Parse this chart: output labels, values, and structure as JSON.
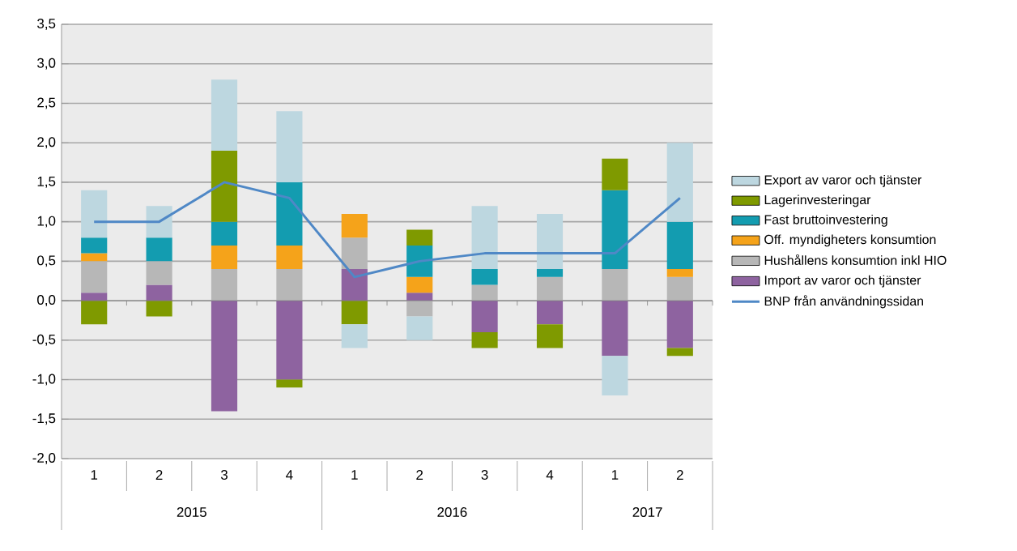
{
  "chart_data": {
    "type": "bar",
    "stacked": true,
    "grid": "y",
    "legend": "right",
    "categories": [
      "1",
      "2",
      "3",
      "4",
      "1",
      "2",
      "3",
      "4",
      "1",
      "2"
    ],
    "series": [
      {
        "name": "Import av varor och tjänster",
        "color": "#8e63a0",
        "values": [
          0.1,
          0.2,
          -1.4,
          -1.0,
          0.4,
          0.1,
          -0.4,
          -0.3,
          -0.7,
          -0.6
        ]
      },
      {
        "name": "Hushållens konsumtion inkl HIO",
        "color": "#b7b7b7",
        "values": [
          0.4,
          0.3,
          0.4,
          0.4,
          0.4,
          -0.2,
          0.2,
          0.3,
          0.4,
          0.3
        ]
      },
      {
        "name": "Off. myndigheters konsumtion",
        "color": "#f5a31a",
        "values": [
          0.1,
          0,
          0.3,
          0.3,
          0.3,
          0.2,
          0,
          0,
          0,
          0.1
        ]
      },
      {
        "name": "Fast bruttoinvestering",
        "color": "#139cb0",
        "values": [
          0.2,
          0.3,
          0.3,
          0.8,
          0,
          0.4,
          0.2,
          0.1,
          1.0,
          0.6
        ]
      },
      {
        "name": "Lagerinvesteringar",
        "color": "#7f9a00",
        "values": [
          -0.3,
          -0.2,
          0.9,
          -0.1,
          -0.3,
          0.2,
          -0.2,
          -0.3,
          0.4,
          -0.1
        ]
      },
      {
        "name": "Export av varor och tjänster",
        "color": "#bdd7e0",
        "values": [
          0.6,
          0.4,
          0.9,
          0.9,
          -0.3,
          -0.3,
          0.8,
          0.7,
          -0.5,
          1.0
        ]
      },
      {
        "name": "BNP från användningssidan",
        "type": "line",
        "color": "#4f88c6",
        "values": [
          1.0,
          1.0,
          1.5,
          1.3,
          0.3,
          0.5,
          0.6,
          0.6,
          0.6,
          1.3
        ]
      }
    ],
    "ylim": [
      -2,
      3.5
    ],
    "yticks": [
      {
        "value": -2,
        "label": "-2,0"
      },
      {
        "value": -1.5,
        "label": "-1,5"
      },
      {
        "value": -1,
        "label": "-1,0"
      },
      {
        "value": -0.5,
        "label": "-0,5"
      },
      {
        "value": 0,
        "label": "0,0"
      },
      {
        "value": 0.5,
        "label": "0,5"
      },
      {
        "value": 1,
        "label": "1,0"
      },
      {
        "value": 1.5,
        "label": "1,5"
      },
      {
        "value": 2,
        "label": "2,0"
      },
      {
        "value": 2.5,
        "label": "2,5"
      },
      {
        "value": 3,
        "label": "3,0"
      },
      {
        "value": 3.5,
        "label": "3,5"
      }
    ],
    "annotations": [
      "2015",
      "2016",
      "2017"
    ]
  }
}
